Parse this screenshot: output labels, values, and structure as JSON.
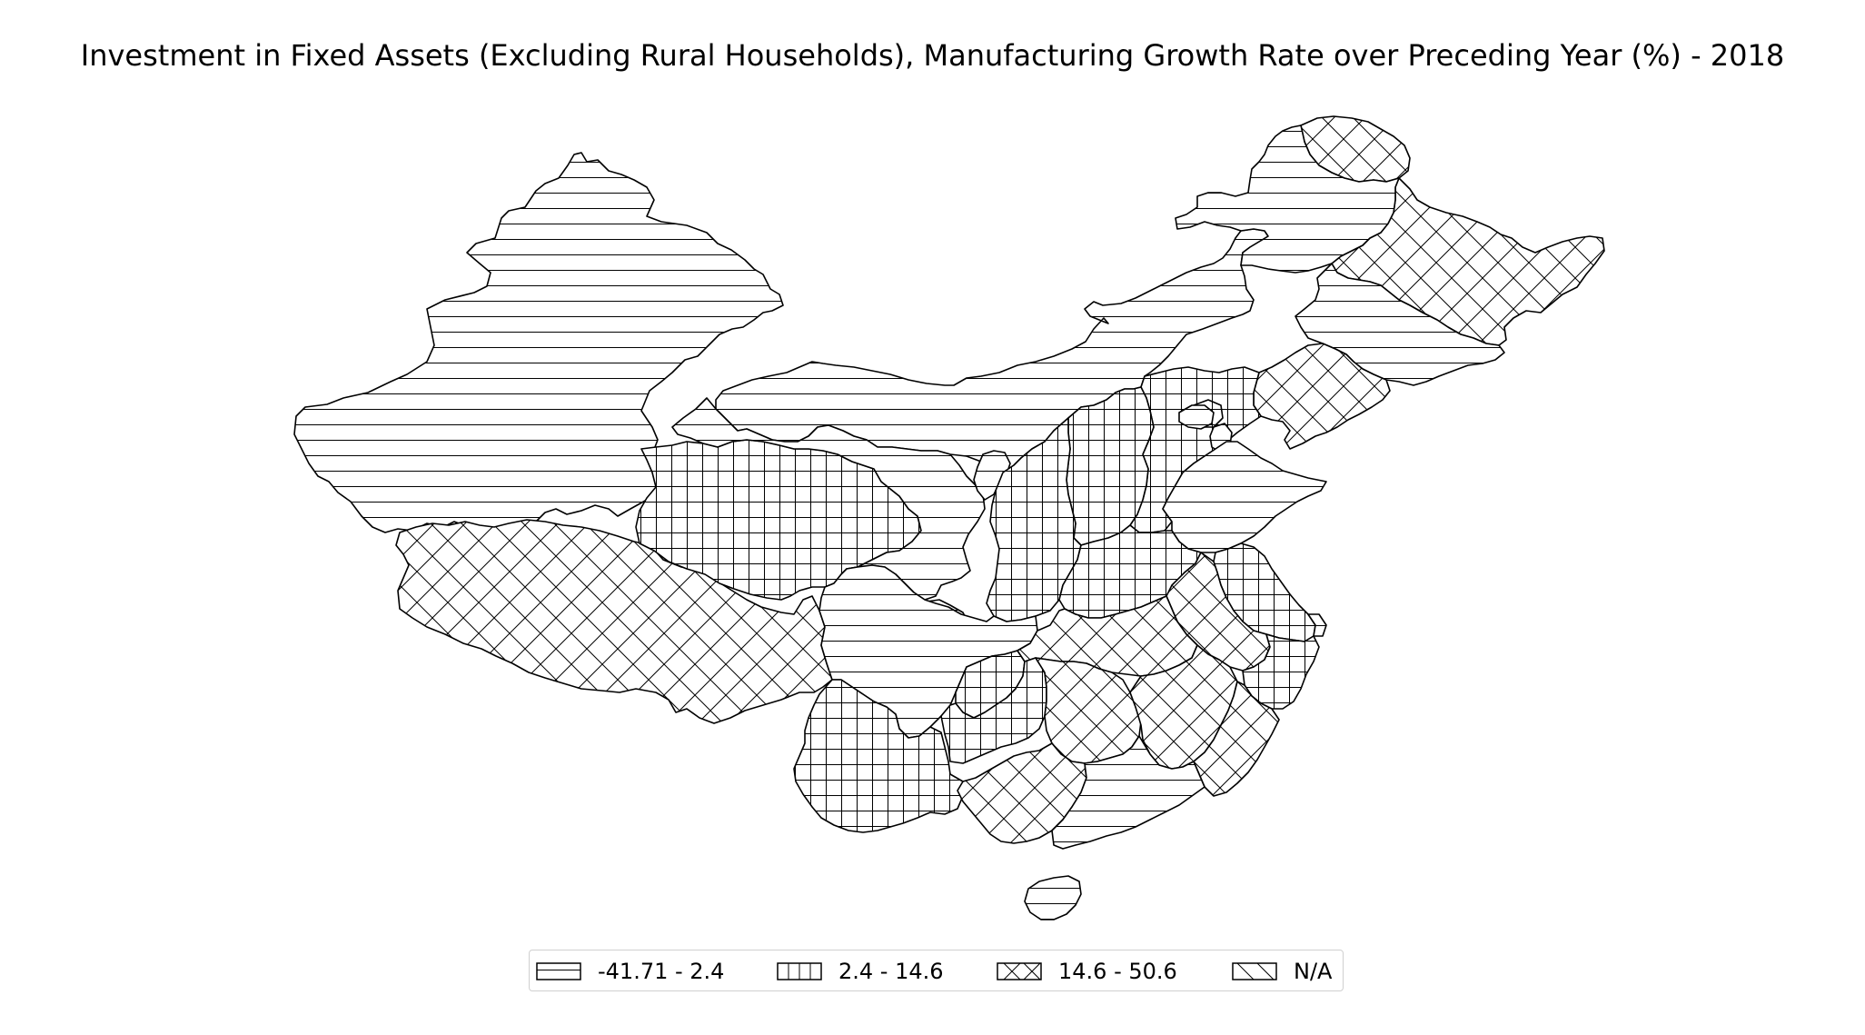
{
  "title": "Investment in Fixed Assets (Excluding Rural Households), Manufacturing Growth Rate over Preceding Year (%) - 2018",
  "legend": {
    "items": [
      {
        "label": "-41.71 - 2.4",
        "pattern": "horizontal"
      },
      {
        "label": "2.4 - 14.6",
        "pattern": "grid"
      },
      {
        "label": "14.6 - 50.6",
        "pattern": "cross"
      },
      {
        "label": "N/A",
        "pattern": "diagonal"
      }
    ]
  },
  "colors": {
    "stroke": "#000000",
    "background": "#ffffff",
    "legend_border": "#d0d0d0"
  },
  "regions": [
    {
      "name": "Xinjiang",
      "class": "-41.71 - 2.4"
    },
    {
      "name": "Tibet",
      "class": "14.6 - 50.6"
    },
    {
      "name": "Qinghai",
      "class": "2.4 - 14.6"
    },
    {
      "name": "Gansu",
      "class": "-41.71 - 2.4"
    },
    {
      "name": "Inner Mongolia",
      "class": "-41.71 - 2.4"
    },
    {
      "name": "Heilongjiang north",
      "class": "14.6 - 50.6"
    },
    {
      "name": "Heilongjiang",
      "class": "-41.71 - 2.4"
    },
    {
      "name": "Jilin",
      "class": "14.6 - 50.6"
    },
    {
      "name": "Jilin south",
      "class": "-41.71 - 2.4"
    },
    {
      "name": "Liaoning",
      "class": "14.6 - 50.6"
    },
    {
      "name": "Hebei",
      "class": "2.4 - 14.6"
    },
    {
      "name": "Beijing",
      "class": "-41.71 - 2.4"
    },
    {
      "name": "Tianjin",
      "class": "-41.71 - 2.4"
    },
    {
      "name": "Shanxi",
      "class": "2.4 - 14.6"
    },
    {
      "name": "Shandong",
      "class": "-41.71 - 2.4"
    },
    {
      "name": "Ningxia",
      "class": "-41.71 - 2.4"
    },
    {
      "name": "Shaanxi",
      "class": "2.4 - 14.6"
    },
    {
      "name": "Henan",
      "class": "2.4 - 14.6"
    },
    {
      "name": "Jiangsu",
      "class": "2.4 - 14.6"
    },
    {
      "name": "Anhui",
      "class": "14.6 - 50.6"
    },
    {
      "name": "Shanghai",
      "class": "-41.71 - 2.4"
    },
    {
      "name": "Sichuan",
      "class": "-41.71 - 2.4"
    },
    {
      "name": "Chongqing",
      "class": "2.4 - 14.6"
    },
    {
      "name": "Hubei",
      "class": "14.6 - 50.6"
    },
    {
      "name": "Zhejiang",
      "class": "2.4 - 14.6"
    },
    {
      "name": "Yunnan",
      "class": "2.4 - 14.6"
    },
    {
      "name": "Guizhou",
      "class": "2.4 - 14.6"
    },
    {
      "name": "Hunan",
      "class": "14.6 - 50.6"
    },
    {
      "name": "Jiangxi",
      "class": "14.6 - 50.6"
    },
    {
      "name": "Fujian",
      "class": "14.6 - 50.6"
    },
    {
      "name": "Guangxi",
      "class": "14.6 - 50.6"
    },
    {
      "name": "Guangdong",
      "class": "-41.71 - 2.4"
    },
    {
      "name": "Hainan",
      "class": "-41.71 - 2.4"
    }
  ]
}
